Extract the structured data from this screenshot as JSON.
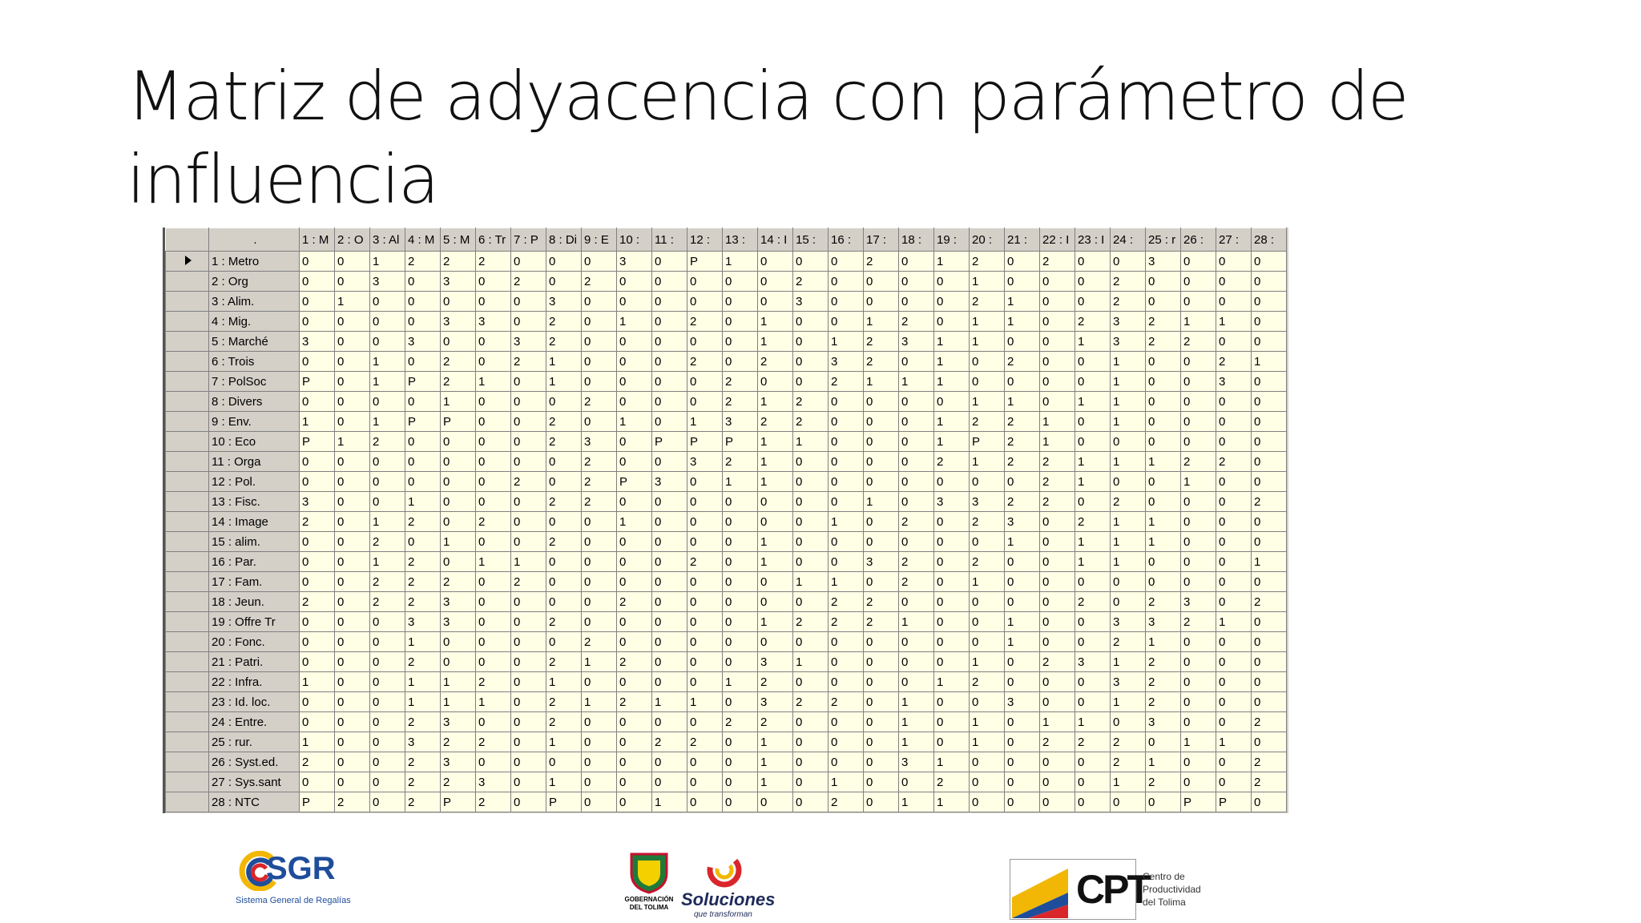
{
  "title": "Matriz de adyacencia con parámetro de influencia",
  "table": {
    "corner": ".",
    "columns": [
      "1 : M",
      "2 : O",
      "3 : Al",
      "4 : M",
      "5 : M",
      "6 : Tr",
      "7 : P",
      "8 : Di",
      "9 : E",
      "10 :",
      "11 :",
      "12 :",
      "13 :",
      "14 : I",
      "15 :",
      "16 :",
      "17 :",
      "18 :",
      "19 :",
      "20 :",
      "21 :",
      "22 : I",
      "23 : I",
      "24 :",
      "25 : r",
      "26 :",
      "27 :",
      "28 :"
    ],
    "rows": [
      {
        "label": "1 : Metro",
        "values": [
          0,
          0,
          1,
          2,
          2,
          2,
          0,
          0,
          0,
          3,
          0,
          "P",
          1,
          0,
          0,
          0,
          2,
          0,
          1,
          2,
          0,
          2,
          0,
          0,
          3,
          0,
          0,
          0
        ]
      },
      {
        "label": "2 : Org",
        "values": [
          0,
          0,
          3,
          0,
          3,
          0,
          2,
          0,
          2,
          0,
          0,
          0,
          0,
          0,
          2,
          0,
          0,
          0,
          0,
          1,
          0,
          0,
          0,
          2,
          0,
          0,
          0,
          0
        ]
      },
      {
        "label": "3 : Alim.",
        "values": [
          0,
          1,
          0,
          0,
          0,
          0,
          0,
          3,
          0,
          0,
          0,
          0,
          0,
          0,
          3,
          0,
          0,
          0,
          0,
          2,
          1,
          0,
          0,
          2,
          0,
          0,
          0,
          0
        ]
      },
      {
        "label": "4 : Mig.",
        "values": [
          0,
          0,
          0,
          0,
          3,
          3,
          0,
          2,
          0,
          1,
          0,
          2,
          0,
          1,
          0,
          0,
          1,
          2,
          0,
          1,
          1,
          0,
          2,
          3,
          2,
          1,
          1,
          0
        ]
      },
      {
        "label": "5 : Marché",
        "values": [
          3,
          0,
          0,
          3,
          0,
          0,
          3,
          2,
          0,
          0,
          0,
          0,
          0,
          1,
          0,
          1,
          2,
          3,
          1,
          1,
          0,
          0,
          1,
          3,
          2,
          2,
          0,
          0
        ]
      },
      {
        "label": "6 : Trois",
        "values": [
          0,
          0,
          1,
          0,
          2,
          0,
          2,
          1,
          0,
          0,
          0,
          2,
          0,
          2,
          0,
          3,
          2,
          0,
          1,
          0,
          2,
          0,
          0,
          1,
          0,
          0,
          2,
          1
        ]
      },
      {
        "label": "7 : PolSoc",
        "values": [
          "P",
          0,
          1,
          "P",
          2,
          1,
          0,
          1,
          0,
          0,
          0,
          0,
          2,
          0,
          0,
          2,
          1,
          1,
          1,
          0,
          0,
          0,
          0,
          1,
          0,
          0,
          3,
          0
        ]
      },
      {
        "label": "8 : Divers",
        "values": [
          0,
          0,
          0,
          0,
          1,
          0,
          0,
          0,
          2,
          0,
          0,
          0,
          2,
          1,
          2,
          0,
          0,
          0,
          0,
          1,
          1,
          0,
          1,
          1,
          0,
          0,
          0,
          0
        ]
      },
      {
        "label": "9 : Env.",
        "values": [
          1,
          0,
          1,
          "P",
          "P",
          0,
          0,
          2,
          0,
          1,
          0,
          1,
          3,
          2,
          2,
          0,
          0,
          0,
          1,
          2,
          2,
          1,
          0,
          1,
          0,
          0,
          0,
          0
        ]
      },
      {
        "label": "10 : Eco",
        "values": [
          "P",
          1,
          2,
          0,
          0,
          0,
          0,
          2,
          3,
          0,
          "P",
          "P",
          "P",
          1,
          1,
          0,
          0,
          0,
          1,
          "P",
          2,
          1,
          0,
          0,
          0,
          0,
          0,
          0
        ]
      },
      {
        "label": "11 : Orga",
        "values": [
          0,
          0,
          0,
          0,
          0,
          0,
          0,
          0,
          2,
          0,
          0,
          3,
          2,
          1,
          0,
          0,
          0,
          0,
          2,
          1,
          2,
          2,
          1,
          1,
          1,
          2,
          2,
          0
        ]
      },
      {
        "label": "12 : Pol.",
        "values": [
          0,
          0,
          0,
          0,
          0,
          0,
          2,
          0,
          2,
          "P",
          3,
          0,
          1,
          1,
          0,
          0,
          0,
          0,
          0,
          0,
          0,
          2,
          1,
          0,
          0,
          1,
          0,
          0
        ]
      },
      {
        "label": "13 : Fisc.",
        "values": [
          3,
          0,
          0,
          1,
          0,
          0,
          0,
          2,
          2,
          0,
          0,
          0,
          0,
          0,
          0,
          0,
          1,
          0,
          3,
          3,
          2,
          2,
          0,
          2,
          0,
          0,
          0,
          2
        ]
      },
      {
        "label": "14 : Image",
        "values": [
          2,
          0,
          1,
          2,
          0,
          2,
          0,
          0,
          0,
          1,
          0,
          0,
          0,
          0,
          0,
          1,
          0,
          2,
          0,
          2,
          3,
          0,
          2,
          1,
          1,
          0,
          0,
          0
        ]
      },
      {
        "label": "15 : alim.",
        "values": [
          0,
          0,
          2,
          0,
          1,
          0,
          0,
          2,
          0,
          0,
          0,
          0,
          0,
          1,
          0,
          0,
          0,
          0,
          0,
          0,
          1,
          0,
          1,
          1,
          1,
          0,
          0,
          0
        ]
      },
      {
        "label": "16 : Par.",
        "values": [
          0,
          0,
          1,
          2,
          0,
          1,
          1,
          0,
          0,
          0,
          0,
          2,
          0,
          1,
          0,
          0,
          3,
          2,
          0,
          2,
          0,
          0,
          1,
          1,
          0,
          0,
          0,
          1
        ]
      },
      {
        "label": "17 : Fam.",
        "values": [
          0,
          0,
          2,
          2,
          2,
          0,
          2,
          0,
          0,
          0,
          0,
          0,
          0,
          0,
          1,
          1,
          0,
          2,
          0,
          1,
          0,
          0,
          0,
          0,
          0,
          0,
          0,
          0
        ]
      },
      {
        "label": "18 : Jeun.",
        "values": [
          2,
          0,
          2,
          2,
          3,
          0,
          0,
          0,
          0,
          2,
          0,
          0,
          0,
          0,
          0,
          2,
          2,
          0,
          0,
          0,
          0,
          0,
          2,
          0,
          2,
          3,
          0,
          2
        ]
      },
      {
        "label": "19 : Offre Tr",
        "values": [
          0,
          0,
          0,
          3,
          3,
          0,
          0,
          2,
          0,
          0,
          0,
          0,
          0,
          1,
          2,
          2,
          2,
          1,
          0,
          0,
          1,
          0,
          0,
          3,
          3,
          2,
          1,
          0
        ]
      },
      {
        "label": "20 : Fonc.",
        "values": [
          0,
          0,
          0,
          1,
          0,
          0,
          0,
          0,
          2,
          0,
          0,
          0,
          0,
          0,
          0,
          0,
          0,
          0,
          0,
          0,
          1,
          0,
          0,
          2,
          1,
          0,
          0,
          0
        ]
      },
      {
        "label": "21 : Patri.",
        "values": [
          0,
          0,
          0,
          2,
          0,
          0,
          0,
          2,
          1,
          2,
          0,
          0,
          0,
          3,
          1,
          0,
          0,
          0,
          0,
          1,
          0,
          2,
          3,
          1,
          2,
          0,
          0,
          0
        ]
      },
      {
        "label": "22 : Infra.",
        "values": [
          1,
          0,
          0,
          1,
          1,
          2,
          0,
          1,
          0,
          0,
          0,
          0,
          1,
          2,
          0,
          0,
          0,
          0,
          1,
          2,
          0,
          0,
          0,
          3,
          2,
          0,
          0,
          0
        ]
      },
      {
        "label": "23 : Id. loc.",
        "values": [
          0,
          0,
          0,
          1,
          1,
          1,
          0,
          2,
          1,
          2,
          1,
          1,
          0,
          3,
          2,
          2,
          0,
          1,
          0,
          0,
          3,
          0,
          0,
          1,
          2,
          0,
          0,
          0
        ]
      },
      {
        "label": "24 : Entre.",
        "values": [
          0,
          0,
          0,
          2,
          3,
          0,
          0,
          2,
          0,
          0,
          0,
          0,
          2,
          2,
          0,
          0,
          0,
          1,
          0,
          1,
          0,
          1,
          1,
          0,
          3,
          0,
          0,
          2
        ]
      },
      {
        "label": "25 : rur.",
        "values": [
          1,
          0,
          0,
          3,
          2,
          2,
          0,
          1,
          0,
          0,
          2,
          2,
          0,
          1,
          0,
          0,
          0,
          1,
          0,
          1,
          0,
          2,
          2,
          2,
          0,
          1,
          1,
          0
        ]
      },
      {
        "label": "26 : Syst.ed.",
        "values": [
          2,
          0,
          0,
          2,
          3,
          0,
          0,
          0,
          0,
          0,
          0,
          0,
          0,
          1,
          0,
          0,
          0,
          3,
          1,
          0,
          0,
          0,
          0,
          2,
          1,
          0,
          0,
          2
        ]
      },
      {
        "label": "27 : Sys.sant",
        "values": [
          0,
          0,
          0,
          2,
          2,
          3,
          0,
          1,
          0,
          0,
          0,
          0,
          0,
          1,
          0,
          1,
          0,
          0,
          2,
          0,
          0,
          0,
          0,
          1,
          2,
          0,
          0,
          2
        ]
      },
      {
        "label": "28 : NTC",
        "values": [
          "P",
          2,
          0,
          2,
          "P",
          2,
          0,
          "P",
          0,
          0,
          1,
          0,
          0,
          0,
          0,
          2,
          0,
          1,
          1,
          0,
          0,
          0,
          0,
          0,
          0,
          "P",
          "P",
          0
        ]
      }
    ]
  },
  "footer": {
    "sgr": {
      "name": "SGR",
      "subtitle": "Sistema General de Regalías"
    },
    "gobernacion": {
      "name": "GOBERNACIÓN",
      "subtitle": "DEL TOLIMA"
    },
    "soluciones": {
      "name": "Soluciones",
      "subtitle": "que transforman"
    },
    "cpt": {
      "name": "CPT",
      "line1": "Centro de",
      "line2": "Productividad",
      "line3": "del Tolima"
    }
  }
}
